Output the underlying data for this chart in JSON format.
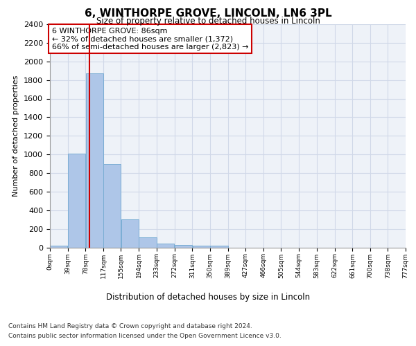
{
  "title": "6, WINTHORPE GROVE, LINCOLN, LN6 3PL",
  "subtitle": "Size of property relative to detached houses in Lincoln",
  "xlabel": "Distribution of detached houses by size in Lincoln",
  "ylabel": "Number of detached properties",
  "bar_color": "#aec6e8",
  "bar_edge_color": "#7aadd4",
  "grid_color": "#d0d8e8",
  "background_color": "#eef2f8",
  "vline_x": 86,
  "vline_color": "#cc0000",
  "annotation_text": "6 WINTHORPE GROVE: 86sqm\n← 32% of detached houses are smaller (1,372)\n66% of semi-detached houses are larger (2,823) →",
  "annotation_box_color": "#ffffff",
  "annotation_box_edge": "#cc0000",
  "bin_edges": [
    0,
    39,
    78,
    117,
    155,
    194,
    233,
    272,
    311,
    350,
    389,
    427,
    466,
    505,
    544,
    583,
    622,
    661,
    700,
    738,
    777
  ],
  "bar_heights": [
    15,
    1005,
    1870,
    900,
    305,
    105,
    40,
    25,
    20,
    20,
    0,
    0,
    0,
    0,
    0,
    0,
    0,
    0,
    0,
    0
  ],
  "ylim": [
    0,
    2400
  ],
  "yticks": [
    0,
    200,
    400,
    600,
    800,
    1000,
    1200,
    1400,
    1600,
    1800,
    2000,
    2200,
    2400
  ],
  "xtick_labels": [
    "0sqm",
    "39sqm",
    "78sqm",
    "117sqm",
    "155sqm",
    "194sqm",
    "233sqm",
    "272sqm",
    "311sqm",
    "350sqm",
    "389sqm",
    "427sqm",
    "466sqm",
    "505sqm",
    "544sqm",
    "583sqm",
    "622sqm",
    "661sqm",
    "700sqm",
    "738sqm",
    "777sqm"
  ],
  "footer_line1": "Contains HM Land Registry data © Crown copyright and database right 2024.",
  "footer_line2": "Contains public sector information licensed under the Open Government Licence v3.0."
}
